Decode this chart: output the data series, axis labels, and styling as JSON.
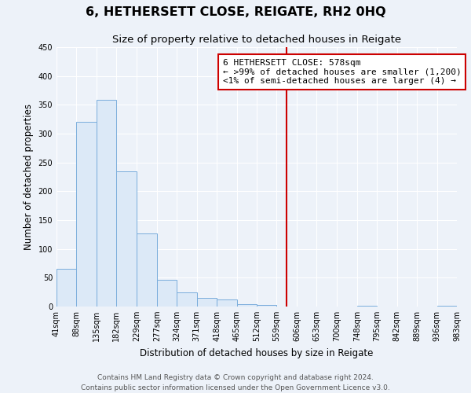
{
  "title": "6, HETHERSETT CLOSE, REIGATE, RH2 0HQ",
  "subtitle": "Size of property relative to detached houses in Reigate",
  "xlabel": "Distribution of detached houses by size in Reigate",
  "ylabel": "Number of detached properties",
  "bar_edges": [
    41,
    88,
    135,
    182,
    229,
    277,
    324,
    371,
    418,
    465,
    512,
    559,
    606,
    653,
    700,
    748,
    795,
    842,
    889,
    936,
    983
  ],
  "bar_heights": [
    65,
    320,
    358,
    235,
    127,
    47,
    25,
    15,
    12,
    4,
    3,
    0,
    0,
    0,
    0,
    2,
    0,
    0,
    0,
    2
  ],
  "bar_color": "#dce9f7",
  "bar_edgecolor": "#7aaddc",
  "vline_x": 582,
  "vline_color": "#cc0000",
  "annotation_title": "6 HETHERSETT CLOSE: 578sqm",
  "annotation_line1": "← >99% of detached houses are smaller (1,200)",
  "annotation_line2": "<1% of semi-detached houses are larger (4) →",
  "annotation_box_facecolor": "#ffffff",
  "annotation_box_edgecolor": "#cc0000",
  "ylim": [
    0,
    450
  ],
  "yticks": [
    0,
    50,
    100,
    150,
    200,
    250,
    300,
    350,
    400,
    450
  ],
  "xtick_labels": [
    "41sqm",
    "88sqm",
    "135sqm",
    "182sqm",
    "229sqm",
    "277sqm",
    "324sqm",
    "371sqm",
    "418sqm",
    "465sqm",
    "512sqm",
    "559sqm",
    "606sqm",
    "653sqm",
    "700sqm",
    "748sqm",
    "795sqm",
    "842sqm",
    "889sqm",
    "936sqm",
    "983sqm"
  ],
  "footer1": "Contains HM Land Registry data © Crown copyright and database right 2024.",
  "footer2": "Contains public sector information licensed under the Open Government Licence v3.0.",
  "background_color": "#edf2f9",
  "plot_background_color": "#edf2f9",
  "title_fontsize": 11.5,
  "subtitle_fontsize": 9.5,
  "axis_label_fontsize": 8.5,
  "tick_fontsize": 7,
  "footer_fontsize": 6.5,
  "annotation_fontsize": 8,
  "annotation_title_fontsize": 8.5
}
